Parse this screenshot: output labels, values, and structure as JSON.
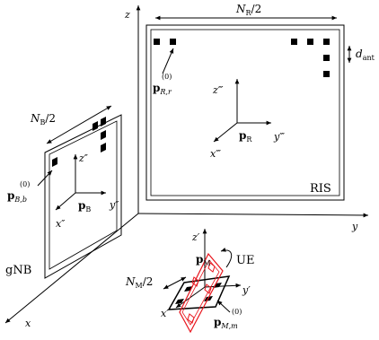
{
  "labels": {
    "global_x": "x",
    "global_y": "y",
    "global_z": "z",
    "ris_dim": "N",
    "ris_dim_sub": "R",
    "ris_dim_tail": "/2",
    "d_ant": "d",
    "d_ant_sub": "ant",
    "p_R0": "p",
    "p_R0_sub": "R,r",
    "p_R0_sup": "(0)",
    "ris_z": "z‴",
    "ris_y": "y‴",
    "ris_x": "x‴",
    "p_R": "p",
    "p_R_sub": "R",
    "ris_name": "RIS",
    "gnb_dim": "N",
    "gnb_dim_sub": "B",
    "gnb_dim_tail": "/2",
    "gnb_z": "z″",
    "gnb_y": "y″",
    "gnb_x": "x″",
    "p_B": "p",
    "p_B_sub": "B",
    "p_B0": "p",
    "p_B0_sub": "B,b",
    "p_B0_sup": "(0)",
    "gnb_name": "gNB",
    "ue_z": "z′",
    "ue_y": "y′",
    "ue_x": "x′",
    "p_M": "p",
    "p_M_sub": "M",
    "ue_name": "UE",
    "ue_dim": "N",
    "ue_dim_sub": "M",
    "ue_dim_tail": "/2",
    "p_M0": "p",
    "p_M0_sub": "M,m",
    "p_M0_sup": "(0)"
  },
  "colors": {
    "line": "#000000",
    "ue_rotated": "#e8141c"
  }
}
